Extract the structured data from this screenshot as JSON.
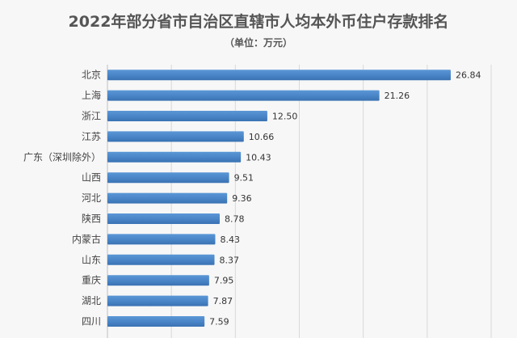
{
  "chart_data": {
    "type": "bar",
    "orientation": "horizontal",
    "title": "2022年部分省市自治区直辖市人均本外币住户存款排名",
    "subtitle": "（单位：万元）",
    "categories": [
      "北京",
      "上海",
      "浙江",
      "江苏",
      "广东（深圳除外）",
      "山西",
      "河北",
      "陕西",
      "内蒙古",
      "山东",
      "重庆",
      "湖北",
      "四川"
    ],
    "values": [
      26.84,
      21.26,
      12.5,
      10.66,
      10.43,
      9.51,
      9.36,
      8.78,
      8.43,
      8.37,
      7.95,
      7.87,
      7.59
    ],
    "value_labels": [
      "26.84",
      "21.26",
      "12.50",
      "10.66",
      "10.43",
      "9.51",
      "9.36",
      "8.78",
      "8.43",
      "8.37",
      "7.95",
      "7.87",
      "7.59"
    ],
    "xlim": [
      0,
      30
    ],
    "grid": true,
    "bar_color": "#4a86c8"
  }
}
